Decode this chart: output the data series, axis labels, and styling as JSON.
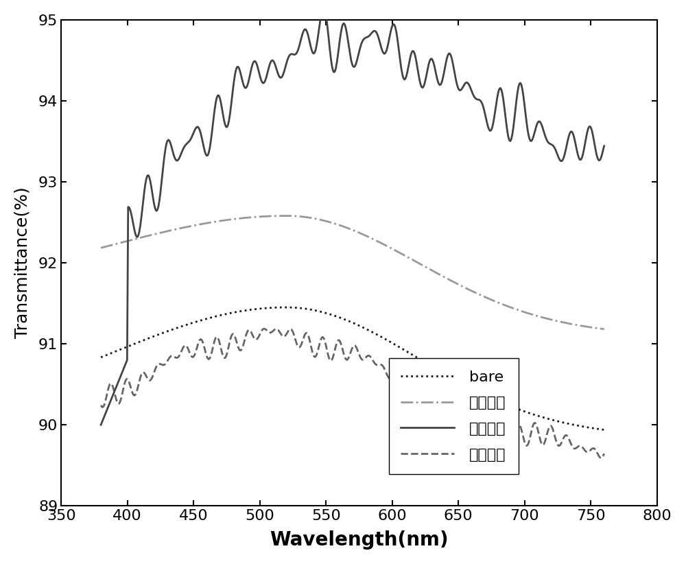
{
  "xlabel": "Wavelength(nm)",
  "ylabel": "Transmittance(%)",
  "xlim": [
    350,
    800
  ],
  "ylim": [
    89,
    95
  ],
  "xticks": [
    350,
    400,
    450,
    500,
    550,
    600,
    650,
    700,
    750,
    800
  ],
  "yticks": [
    89,
    90,
    91,
    92,
    93,
    94,
    95
  ],
  "legend_labels": [
    "bare",
    "实施例一",
    "实施例二",
    "实施例三"
  ],
  "colors": [
    "#1a1a1a",
    "#999999",
    "#444444",
    "#666666"
  ],
  "linestyles": [
    "dotted",
    "dashdot",
    "solid",
    "dashed"
  ],
  "linewidths": [
    2.0,
    2.0,
    2.0,
    2.0
  ],
  "background_color": "#ffffff",
  "font_size": 18,
  "legend_font_size": 16,
  "xlabel_fontsize": 20,
  "ylabel_fontsize": 18,
  "tick_fontsize": 16
}
